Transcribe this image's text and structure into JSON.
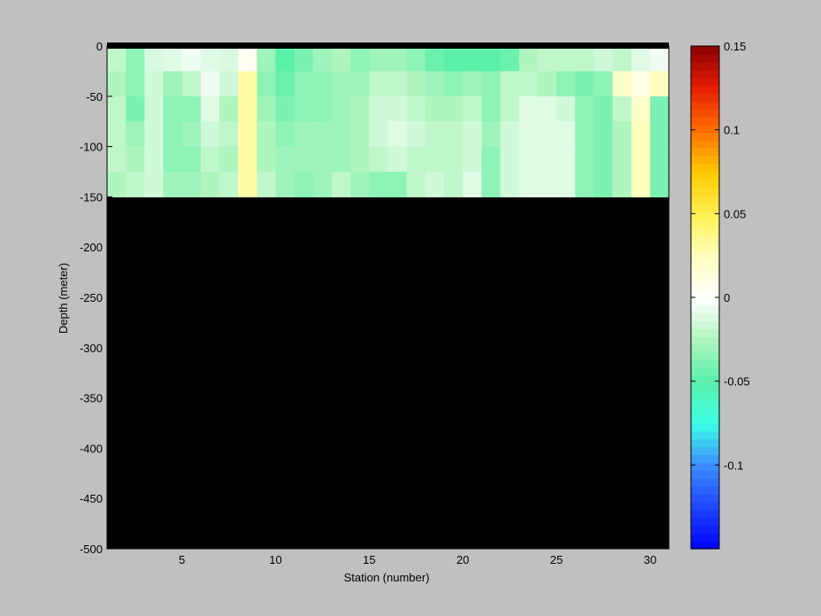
{
  "chart_data": {
    "type": "heatmap",
    "title": "",
    "xlabel": "Station (number)",
    "ylabel": "Depth (meter)",
    "xlim": [
      1,
      31
    ],
    "ylim": [
      -500,
      0
    ],
    "xticks": [
      5,
      10,
      15,
      20,
      25,
      30
    ],
    "yticks": [
      0,
      -50,
      -100,
      -150,
      -200,
      -250,
      -300,
      -350,
      -400,
      -450,
      -500
    ],
    "x_stations": [
      1,
      2,
      3,
      4,
      5,
      6,
      7,
      8,
      9,
      10,
      11,
      12,
      13,
      14,
      15,
      16,
      17,
      18,
      19,
      20,
      21,
      22,
      23,
      24,
      25,
      26,
      27,
      28,
      29,
      30
    ],
    "y_depth_top": 0,
    "depth_bin_m": 25,
    "values": [
      [
        -0.02,
        -0.035,
        -0.012,
        -0.01,
        -0.005,
        -0.01,
        -0.012,
        0.005,
        -0.03,
        -0.05,
        -0.04,
        -0.03,
        -0.025,
        -0.035,
        -0.03,
        -0.03,
        -0.035,
        -0.045,
        -0.05,
        -0.05,
        -0.05,
        -0.045,
        -0.025,
        -0.02,
        -0.02,
        -0.02,
        -0.015,
        -0.02,
        -0.01,
        -0.005
      ],
      [
        -0.025,
        -0.035,
        -0.015,
        -0.03,
        -0.02,
        -0.005,
        -0.015,
        0.03,
        -0.035,
        -0.045,
        -0.035,
        -0.035,
        -0.03,
        -0.03,
        -0.02,
        -0.02,
        -0.025,
        -0.03,
        -0.035,
        -0.03,
        -0.035,
        -0.02,
        -0.02,
        -0.025,
        -0.035,
        -0.04,
        -0.035,
        0.02,
        0.01,
        0.025
      ],
      [
        -0.02,
        -0.04,
        -0.015,
        -0.035,
        -0.035,
        -0.01,
        -0.025,
        0.03,
        -0.03,
        -0.04,
        -0.035,
        -0.035,
        -0.03,
        -0.025,
        -0.015,
        -0.015,
        -0.02,
        -0.025,
        -0.025,
        -0.02,
        -0.035,
        -0.02,
        -0.01,
        -0.01,
        -0.015,
        -0.035,
        -0.04,
        -0.02,
        0.02,
        -0.04
      ],
      [
        -0.02,
        -0.03,
        -0.015,
        -0.035,
        -0.03,
        -0.015,
        -0.02,
        0.03,
        -0.025,
        -0.035,
        -0.03,
        -0.03,
        -0.03,
        -0.025,
        -0.015,
        -0.01,
        -0.015,
        -0.02,
        -0.02,
        -0.015,
        -0.03,
        -0.015,
        -0.01,
        -0.01,
        -0.01,
        -0.035,
        -0.04,
        -0.025,
        0.025,
        -0.04
      ],
      [
        -0.02,
        -0.025,
        -0.015,
        -0.035,
        -0.035,
        -0.02,
        -0.025,
        0.03,
        -0.025,
        -0.03,
        -0.03,
        -0.03,
        -0.03,
        -0.025,
        -0.02,
        -0.015,
        -0.02,
        -0.02,
        -0.02,
        -0.015,
        -0.035,
        -0.015,
        -0.01,
        -0.01,
        -0.01,
        -0.035,
        -0.04,
        -0.025,
        0.025,
        -0.04
      ],
      [
        -0.025,
        -0.02,
        -0.015,
        -0.03,
        -0.03,
        -0.025,
        -0.02,
        0.03,
        -0.02,
        -0.03,
        -0.035,
        -0.03,
        -0.02,
        -0.03,
        -0.035,
        -0.035,
        -0.02,
        -0.015,
        -0.02,
        -0.01,
        -0.035,
        -0.015,
        -0.01,
        -0.01,
        -0.01,
        -0.035,
        -0.04,
        -0.025,
        0.025,
        -0.04
      ]
    ],
    "grid": false,
    "colorbar": {
      "range": [
        -0.15,
        0.15
      ],
      "ticks": [
        0.15,
        0.1,
        0.05,
        0,
        -0.05,
        -0.1
      ],
      "tick_labels": [
        "0.15",
        "0.1",
        "0.05",
        "0",
        "-0.05",
        "-0.1"
      ],
      "colormap": "jet-white-center"
    },
    "bottom_color": "#000000"
  }
}
